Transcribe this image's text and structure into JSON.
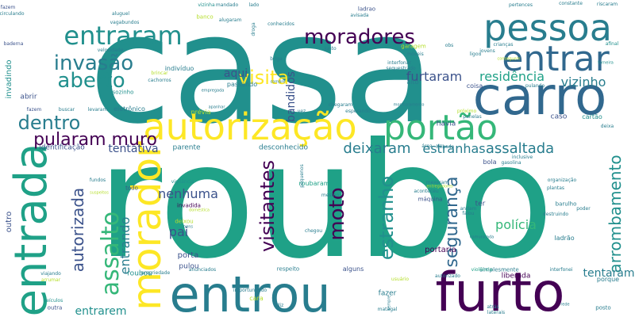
{
  "palette": {
    "dark_purple": "#440154",
    "indigo": "#3b528b",
    "blue": "#31688e",
    "teal_blue": "#287d8e",
    "teal": "#21908d",
    "sea_green": "#1fa187",
    "green": "#35b779",
    "light_green": "#6ece58",
    "lime": "#b5de2b",
    "yellow": "#fde725"
  },
  "words": [
    {
      "text": "casa",
      "color": "teal",
      "orient": "h"
    },
    {
      "text": "roubo",
      "color": "sea_green",
      "orient": "h"
    },
    {
      "text": "entrou",
      "color": "teal_blue",
      "orient": "h"
    },
    {
      "text": "furto",
      "color": "dark_purple",
      "orient": "h"
    },
    {
      "text": "carro",
      "color": "blue",
      "orient": "h"
    },
    {
      "text": "autorização",
      "color": "yellow",
      "orient": "h"
    },
    {
      "text": "pessoa",
      "color": "teal_blue",
      "orient": "h"
    },
    {
      "text": "entrar",
      "color": "blue",
      "orient": "h"
    },
    {
      "text": "portão",
      "color": "green",
      "orient": "h"
    },
    {
      "text": "morador",
      "color": "yellow",
      "orient": "v"
    },
    {
      "text": "entrada",
      "color": "sea_green",
      "orient": "v"
    },
    {
      "text": "entraram",
      "color": "teal",
      "orient": "h"
    },
    {
      "text": "moradores",
      "color": "dark_purple",
      "orient": "h"
    },
    {
      "text": "invasão",
      "color": "teal_blue",
      "orient": "h"
    },
    {
      "text": "aberto",
      "color": "teal",
      "orient": "h"
    },
    {
      "text": "visita",
      "color": "yellow",
      "orient": "h"
    },
    {
      "text": "dentro",
      "color": "teal_blue",
      "orient": "h"
    },
    {
      "text": "pularam muro",
      "color": "dark_purple",
      "orient": "h"
    },
    {
      "text": "tentativa",
      "color": "indigo",
      "orient": "h"
    },
    {
      "text": "deixaram",
      "color": "teal_blue",
      "orient": "h"
    },
    {
      "text": "estranhas",
      "color": "teal_blue",
      "orient": "h"
    },
    {
      "text": "assaltada",
      "color": "teal_blue",
      "orient": "h"
    },
    {
      "text": "vizinho",
      "color": "teal_blue",
      "orient": "h"
    },
    {
      "text": "furtaram",
      "color": "indigo",
      "orient": "h"
    },
    {
      "text": "residência",
      "color": "sea_green",
      "orient": "h"
    },
    {
      "text": "aqui",
      "color": "indigo",
      "orient": "h"
    },
    {
      "text": "bandidos",
      "color": "indigo",
      "orient": "v"
    },
    {
      "text": "assalto",
      "color": "green",
      "orient": "v"
    },
    {
      "text": "autorizada",
      "color": "indigo",
      "orient": "v"
    },
    {
      "text": "entrando",
      "color": "teal_blue",
      "orient": "v"
    },
    {
      "text": "visitantes",
      "color": "dark_purple",
      "orient": "v"
    },
    {
      "text": "moto",
      "color": "dark_purple",
      "orient": "v"
    },
    {
      "text": "estranho",
      "color": "teal",
      "orient": "v"
    },
    {
      "text": "segurança",
      "color": "blue",
      "orient": "v"
    },
    {
      "text": "arrombamento",
      "color": "teal",
      "orient": "v"
    },
    {
      "text": "nenhuma",
      "color": "indigo",
      "orient": "h"
    },
    {
      "text": "pai",
      "color": "indigo",
      "orient": "h"
    },
    {
      "text": "polícia",
      "color": "green",
      "orient": "h"
    },
    {
      "text": "tentaram",
      "color": "teal_blue",
      "orient": "h"
    },
    {
      "text": "entrarem",
      "color": "teal",
      "orient": "h"
    },
    {
      "text": "invadindo",
      "color": "teal",
      "orient": "v"
    },
    {
      "text": "outro",
      "color": "indigo",
      "orient": "v"
    },
    {
      "text": "portaria",
      "color": "dark_purple",
      "orient": "h"
    },
    {
      "text": "porta",
      "color": "indigo",
      "orient": "h"
    },
    {
      "text": "pulou",
      "color": "indigo",
      "orient": "h"
    },
    {
      "text": "roubou",
      "color": "teal",
      "orient": "h"
    },
    {
      "text": "roubaram",
      "color": "sea_green",
      "orient": "h"
    },
    {
      "text": "identificação",
      "color": "indigo",
      "orient": "h"
    },
    {
      "text": "desconhecido",
      "color": "teal_blue",
      "orient": "h"
    },
    {
      "text": "parente",
      "color": "teal_blue",
      "orient": "h"
    },
    {
      "text": "prévia",
      "color": "lime",
      "orient": "h"
    },
    {
      "text": "eletrônico",
      "color": "teal_blue",
      "orient": "h"
    },
    {
      "text": "indivíduo",
      "color": "teal_blue",
      "orient": "h"
    },
    {
      "text": "sozinho",
      "color": "teal",
      "orient": "h"
    },
    {
      "text": "abrir",
      "color": "indigo",
      "orient": "h"
    },
    {
      "text": "fazem",
      "color": "indigo",
      "orient": "h"
    },
    {
      "text": "buscar",
      "color": "teal_blue",
      "orient": "h"
    },
    {
      "text": "levaram",
      "color": "teal_blue",
      "orient": "h"
    },
    {
      "text": "passando",
      "color": "teal_blue",
      "orient": "h"
    },
    {
      "text": "alto",
      "color": "teal_blue",
      "orient": "h"
    },
    {
      "text": "coisa",
      "color": "indigo",
      "orient": "h"
    },
    {
      "text": "pulando",
      "color": "teal_blue",
      "orient": "h"
    },
    {
      "text": "cartão",
      "color": "teal",
      "orient": "h"
    },
    {
      "text": "caso",
      "color": "indigo",
      "orient": "h"
    },
    {
      "text": "havia",
      "color": "indigo",
      "orient": "h"
    },
    {
      "text": "bola",
      "color": "indigo",
      "orient": "h"
    },
    {
      "text": "ter",
      "color": "indigo",
      "orient": "h"
    },
    {
      "text": "vigilância",
      "color": "teal",
      "orient": "h"
    },
    {
      "text": "todo",
      "color": "indigo",
      "orient": "h"
    },
    {
      "text": "invadida",
      "color": "dark_purple",
      "orient": "h"
    },
    {
      "text": "deixou",
      "color": "lime",
      "orient": "h"
    },
    {
      "text": "máquina",
      "color": "indigo",
      "orient": "h"
    },
    {
      "text": "ladrão",
      "color": "teal_blue",
      "orient": "h"
    },
    {
      "text": "liberada",
      "color": "dark_purple",
      "orient": "h"
    },
    {
      "text": "simplesmente",
      "color": "teal_blue",
      "orient": "h"
    },
    {
      "text": "barulho",
      "color": "teal_blue",
      "orient": "h"
    },
    {
      "text": "destruindo",
      "color": "teal_blue",
      "orient": "h"
    },
    {
      "text": "poder",
      "color": "teal_blue",
      "orient": "h"
    },
    {
      "text": "porque",
      "color": "teal_blue",
      "orient": "h"
    },
    {
      "text": "respeito",
      "color": "teal_blue",
      "orient": "h"
    },
    {
      "text": "alguns",
      "color": "indigo",
      "orient": "h"
    },
    {
      "text": "fazer",
      "color": "teal_blue",
      "orient": "h"
    },
    {
      "text": "usuário",
      "color": "lime",
      "orient": "h"
    },
    {
      "text": "autorizado",
      "color": "teal_blue",
      "orient": "h"
    },
    {
      "text": "violência",
      "color": "sea_green",
      "orient": "h"
    },
    {
      "text": "interfonei",
      "color": "teal_blue",
      "orient": "h"
    },
    {
      "text": "anunciados",
      "color": "teal_blue",
      "orient": "h"
    },
    {
      "text": "propriedade",
      "color": "teal_blue",
      "orient": "h"
    },
    {
      "text": "viajando",
      "color": "teal_blue",
      "orient": "h"
    },
    {
      "text": "arrumar",
      "color": "lime",
      "orient": "h"
    },
    {
      "text": "veículos",
      "color": "teal",
      "orient": "h"
    },
    {
      "text": "outra",
      "color": "indigo",
      "orient": "h"
    },
    {
      "text": "cara",
      "color": "lime",
      "orient": "h"
    },
    {
      "text": "importunando",
      "color": "teal_blue",
      "orient": "h"
    },
    {
      "text": "diz",
      "color": "teal_blue",
      "orient": "h"
    },
    {
      "text": "sempre",
      "color": "teal_blue",
      "orient": "v"
    },
    {
      "text": "matagal",
      "color": "teal_blue",
      "orient": "h"
    },
    {
      "text": "atrás",
      "color": "teal_blue",
      "orient": "h"
    },
    {
      "text": "laterais",
      "color": "teal_blue",
      "orient": "h"
    },
    {
      "text": "posto",
      "color": "teal_blue",
      "orient": "h"
    },
    {
      "text": "rede",
      "color": "teal_blue",
      "orient": "h"
    },
    {
      "text": "vizinha",
      "color": "teal",
      "orient": "h"
    },
    {
      "text": "circulando",
      "color": "teal_blue",
      "orient": "h"
    },
    {
      "text": "baderna",
      "color": "indigo",
      "orient": "h"
    },
    {
      "text": "aluguel",
      "color": "teal_blue",
      "orient": "h"
    },
    {
      "text": "vagabundos",
      "color": "teal_blue",
      "orient": "h"
    },
    {
      "text": "mandado",
      "color": "teal_blue",
      "orient": "h"
    },
    {
      "text": "lado",
      "color": "teal_blue",
      "orient": "h"
    },
    {
      "text": "ladrao",
      "color": "indigo",
      "orient": "h"
    },
    {
      "text": "avisada",
      "color": "teal_blue",
      "orient": "h"
    },
    {
      "text": "pertences",
      "color": "teal_blue",
      "orient": "h"
    },
    {
      "text": "constante",
      "color": "teal_blue",
      "orient": "h"
    },
    {
      "text": "riscaram",
      "color": "teal_blue",
      "orient": "h"
    },
    {
      "text": "banco",
      "color": "lime",
      "orient": "h"
    },
    {
      "text": "alugaram",
      "color": "teal_blue",
      "orient": "h"
    },
    {
      "text": "droga",
      "color": "teal_blue",
      "orient": "v"
    },
    {
      "text": "conhecidos",
      "color": "teal_blue",
      "orient": "h"
    },
    {
      "text": "garagem",
      "color": "lime",
      "orient": "h"
    },
    {
      "text": "móveis",
      "color": "teal_blue",
      "orient": "h"
    },
    {
      "text": "obs",
      "color": "teal_blue",
      "orient": "h"
    },
    {
      "text": "ligou",
      "color": "teal_blue",
      "orient": "h"
    },
    {
      "text": "conseguem",
      "color": "lime",
      "orient": "h"
    },
    {
      "text": "crianças",
      "color": "teal_blue",
      "orient": "h"
    },
    {
      "text": "jovens",
      "color": "teal_blue",
      "orient": "h"
    },
    {
      "text": "afinal",
      "color": "teal",
      "orient": "h"
    },
    {
      "text": "torneira",
      "color": "teal",
      "orient": "h"
    },
    {
      "text": "interfonar",
      "color": "teal_blue",
      "orient": "h"
    },
    {
      "text": "sequestrado",
      "color": "teal_blue",
      "orient": "h"
    },
    {
      "text": "briga",
      "color": "teal_blue",
      "orient": "h"
    },
    {
      "text": "compre",
      "color": "teal_blue",
      "orient": "h"
    },
    {
      "text": "junto",
      "color": "teal_blue",
      "orient": "h"
    },
    {
      "text": "brincar",
      "color": "lime",
      "orient": "h"
    },
    {
      "text": "cachorros",
      "color": "teal_blue",
      "orient": "h"
    },
    {
      "text": "velocidade",
      "color": "teal_blue",
      "orient": "h"
    },
    {
      "text": "empregada",
      "color": "teal_blue",
      "orient": "h"
    },
    {
      "text": "apanhar",
      "color": "teal_blue",
      "orient": "h"
    },
    {
      "text": "esperando",
      "color": "teal_blue",
      "orient": "h"
    },
    {
      "text": "chegaram",
      "color": "teal_blue",
      "orient": "h"
    },
    {
      "text": "monitoramento",
      "color": "teal_blue",
      "orient": "h"
    },
    {
      "text": "próximo",
      "color": "lime",
      "orient": "h"
    },
    {
      "text": "panelas",
      "color": "teal_blue",
      "orient": "h"
    },
    {
      "text": "deixa",
      "color": "teal_blue",
      "orient": "h"
    },
    {
      "text": "bêbado",
      "color": "teal_blue",
      "orient": "h"
    },
    {
      "text": "área",
      "color": "teal_blue",
      "orient": "h"
    },
    {
      "text": "gasolina",
      "color": "teal_blue",
      "orient": "h"
    },
    {
      "text": "inclusive",
      "color": "teal_blue",
      "orient": "h"
    },
    {
      "text": "organização",
      "color": "teal_blue",
      "orient": "h"
    },
    {
      "text": "plantas",
      "color": "teal_blue",
      "orient": "h"
    },
    {
      "text": "fundos",
      "color": "teal_blue",
      "orient": "h"
    },
    {
      "text": "suspeitos",
      "color": "lime",
      "orient": "h"
    },
    {
      "text": "pequenos",
      "color": "teal_blue",
      "orient": "v"
    },
    {
      "text": "mexeram",
      "color": "teal_blue",
      "orient": "h"
    },
    {
      "text": "entregadores",
      "color": "lime",
      "orient": "h"
    },
    {
      "text": "aconteceu",
      "color": "teal_blue",
      "orient": "h"
    },
    {
      "text": "doméstica",
      "color": "lime",
      "orient": "h"
    },
    {
      "text": "bens",
      "color": "teal_blue",
      "orient": "h"
    },
    {
      "text": "chegou",
      "color": "teal_blue",
      "orient": "h"
    },
    {
      "text": "comunicada",
      "color": "teal_blue",
      "orient": "h"
    },
    {
      "text": "falou",
      "color": "teal_blue",
      "orient": "h"
    },
    {
      "text": "andam",
      "color": "teal_blue",
      "orient": "h"
    },
    {
      "text": "mesmo",
      "color": "teal_blue",
      "orient": "h"
    },
    {
      "text": "vez",
      "color": "teal_blue",
      "orient": "h"
    },
    {
      "text": "fazem",
      "color": "indigo",
      "orient": "h"
    }
  ]
}
